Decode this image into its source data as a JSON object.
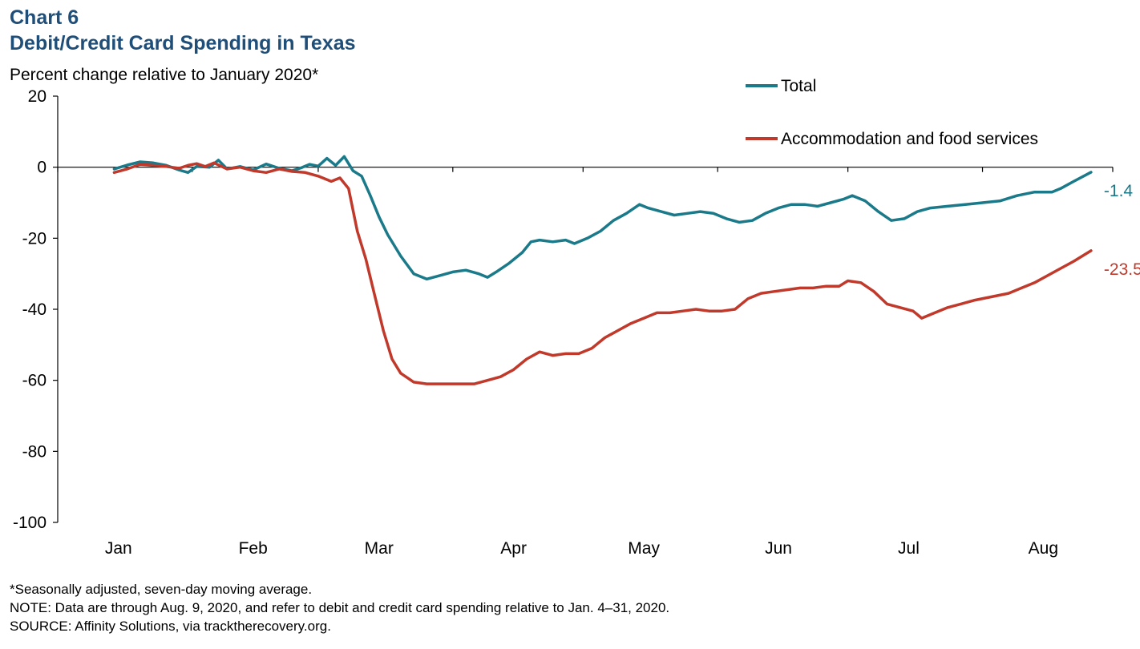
{
  "header": {
    "chart_number": "Chart 6",
    "title": "Debit/Credit Card Spending in Texas",
    "unit_label": "Percent change relative to January 2020*"
  },
  "footnotes": {
    "note1": "*Seasonally adjusted, seven-day moving average.",
    "note2": "NOTE: Data are through Aug. 9, 2020, and refer to debit and credit card spending relative to Jan. 4–31, 2020.",
    "source": "SOURCE: Affinity Solutions, via tracktherecovery.org."
  },
  "chart_data": {
    "type": "line",
    "ylim": [
      -100,
      20
    ],
    "yticks": [
      20,
      0,
      -20,
      -40,
      -60,
      -80,
      -100
    ],
    "xlim": [
      "2020-01-01",
      "2020-08-31"
    ],
    "xticks": [
      {
        "label": "Jan",
        "date": "2020-01-15"
      },
      {
        "label": "Feb",
        "date": "2020-02-15"
      },
      {
        "label": "Mar",
        "date": "2020-03-15"
      },
      {
        "label": "Apr",
        "date": "2020-04-15"
      },
      {
        "label": "May",
        "date": "2020-05-15"
      },
      {
        "label": "Jun",
        "date": "2020-06-15"
      },
      {
        "label": "Jul",
        "date": "2020-07-15"
      },
      {
        "label": "Aug",
        "date": "2020-08-15"
      }
    ],
    "legend_position": "top-right",
    "series": [
      {
        "name": "Total",
        "color": "#1a7a8a",
        "end_label": "-1.4",
        "points": [
          [
            "2020-01-14",
            -0.5
          ],
          [
            "2020-01-17",
            0.6
          ],
          [
            "2020-01-20",
            1.5
          ],
          [
            "2020-01-23",
            1.2
          ],
          [
            "2020-01-26",
            0.5
          ],
          [
            "2020-01-29",
            -0.8
          ],
          [
            "2020-01-31",
            -1.5
          ],
          [
            "2020-02-02",
            0.2
          ],
          [
            "2020-02-05",
            0.0
          ],
          [
            "2020-02-07",
            2.0
          ],
          [
            "2020-02-09",
            -0.5
          ],
          [
            "2020-02-12",
            0.2
          ],
          [
            "2020-02-15",
            -0.8
          ],
          [
            "2020-02-18",
            0.9
          ],
          [
            "2020-02-21",
            -0.3
          ],
          [
            "2020-02-24",
            -1.0
          ],
          [
            "2020-02-26",
            -0.2
          ],
          [
            "2020-02-28",
            0.8
          ],
          [
            "2020-03-01",
            0.3
          ],
          [
            "2020-03-03",
            2.5
          ],
          [
            "2020-03-05",
            0.5
          ],
          [
            "2020-03-07",
            3.0
          ],
          [
            "2020-03-09",
            -1.0
          ],
          [
            "2020-03-11",
            -2.5
          ],
          [
            "2020-03-13",
            -8.0
          ],
          [
            "2020-03-15",
            -14.0
          ],
          [
            "2020-03-17",
            -19.0
          ],
          [
            "2020-03-20",
            -25.0
          ],
          [
            "2020-03-23",
            -30.0
          ],
          [
            "2020-03-26",
            -31.5
          ],
          [
            "2020-03-29",
            -30.5
          ],
          [
            "2020-04-01",
            -29.5
          ],
          [
            "2020-04-04",
            -29.0
          ],
          [
            "2020-04-07",
            -30.0
          ],
          [
            "2020-04-09",
            -31.0
          ],
          [
            "2020-04-11",
            -29.5
          ],
          [
            "2020-04-14",
            -27.0
          ],
          [
            "2020-04-17",
            -24.0
          ],
          [
            "2020-04-19",
            -21.0
          ],
          [
            "2020-04-21",
            -20.5
          ],
          [
            "2020-04-24",
            -21.0
          ],
          [
            "2020-04-27",
            -20.5
          ],
          [
            "2020-04-29",
            -21.5
          ],
          [
            "2020-05-02",
            -20.0
          ],
          [
            "2020-05-05",
            -18.0
          ],
          [
            "2020-05-08",
            -15.0
          ],
          [
            "2020-05-11",
            -13.0
          ],
          [
            "2020-05-14",
            -10.5
          ],
          [
            "2020-05-16",
            -11.5
          ],
          [
            "2020-05-19",
            -12.5
          ],
          [
            "2020-05-22",
            -13.5
          ],
          [
            "2020-05-25",
            -13.0
          ],
          [
            "2020-05-28",
            -12.5
          ],
          [
            "2020-05-31",
            -13.0
          ],
          [
            "2020-06-03",
            -14.5
          ],
          [
            "2020-06-06",
            -15.5
          ],
          [
            "2020-06-09",
            -15.0
          ],
          [
            "2020-06-12",
            -13.0
          ],
          [
            "2020-06-15",
            -11.5
          ],
          [
            "2020-06-18",
            -10.5
          ],
          [
            "2020-06-21",
            -10.5
          ],
          [
            "2020-06-24",
            -11.0
          ],
          [
            "2020-06-27",
            -10.0
          ],
          [
            "2020-06-30",
            -9.0
          ],
          [
            "2020-07-02",
            -8.0
          ],
          [
            "2020-07-05",
            -9.5
          ],
          [
            "2020-07-08",
            -12.5
          ],
          [
            "2020-07-11",
            -15.0
          ],
          [
            "2020-07-14",
            -14.5
          ],
          [
            "2020-07-17",
            -12.5
          ],
          [
            "2020-07-20",
            -11.5
          ],
          [
            "2020-07-24",
            -11.0
          ],
          [
            "2020-07-28",
            -10.5
          ],
          [
            "2020-08-01",
            -10.0
          ],
          [
            "2020-08-05",
            -9.5
          ],
          [
            "2020-08-09",
            -8.0
          ],
          [
            "2020-08-13",
            -7.0
          ],
          [
            "2020-08-17",
            -7.0
          ],
          [
            "2020-08-19",
            -6.0
          ],
          [
            "2020-08-22",
            -4.0
          ],
          [
            "2020-08-26",
            -1.4
          ]
        ]
      },
      {
        "name": "Accommodation and food services",
        "color": "#c0392b",
        "end_label": "-23.5",
        "points": [
          [
            "2020-01-14",
            -1.5
          ],
          [
            "2020-01-17",
            -0.5
          ],
          [
            "2020-01-20",
            0.8
          ],
          [
            "2020-01-23",
            0.5
          ],
          [
            "2020-01-26",
            0.2
          ],
          [
            "2020-01-29",
            -0.3
          ],
          [
            "2020-01-31",
            0.5
          ],
          [
            "2020-02-02",
            1.0
          ],
          [
            "2020-02-04",
            0.2
          ],
          [
            "2020-02-06",
            1.2
          ],
          [
            "2020-02-09",
            -0.5
          ],
          [
            "2020-02-12",
            0.0
          ],
          [
            "2020-02-15",
            -1.0
          ],
          [
            "2020-02-18",
            -1.5
          ],
          [
            "2020-02-21",
            -0.5
          ],
          [
            "2020-02-24",
            -1.2
          ],
          [
            "2020-02-27",
            -1.5
          ],
          [
            "2020-03-01",
            -2.5
          ],
          [
            "2020-03-04",
            -4.0
          ],
          [
            "2020-03-06",
            -3.0
          ],
          [
            "2020-03-08",
            -6.0
          ],
          [
            "2020-03-10",
            -18.0
          ],
          [
            "2020-03-12",
            -26.0
          ],
          [
            "2020-03-14",
            -36.0
          ],
          [
            "2020-03-16",
            -46.0
          ],
          [
            "2020-03-18",
            -54.0
          ],
          [
            "2020-03-20",
            -58.0
          ],
          [
            "2020-03-23",
            -60.5
          ],
          [
            "2020-03-26",
            -61.0
          ],
          [
            "2020-03-30",
            -61.0
          ],
          [
            "2020-04-03",
            -61.0
          ],
          [
            "2020-04-06",
            -61.0
          ],
          [
            "2020-04-09",
            -60.0
          ],
          [
            "2020-04-12",
            -59.0
          ],
          [
            "2020-04-15",
            -57.0
          ],
          [
            "2020-04-18",
            -54.0
          ],
          [
            "2020-04-21",
            -52.0
          ],
          [
            "2020-04-24",
            -53.0
          ],
          [
            "2020-04-27",
            -52.5
          ],
          [
            "2020-04-30",
            -52.5
          ],
          [
            "2020-05-03",
            -51.0
          ],
          [
            "2020-05-06",
            -48.0
          ],
          [
            "2020-05-09",
            -46.0
          ],
          [
            "2020-05-12",
            -44.0
          ],
          [
            "2020-05-15",
            -42.5
          ],
          [
            "2020-05-18",
            -41.0
          ],
          [
            "2020-05-21",
            -41.0
          ],
          [
            "2020-05-24",
            -40.5
          ],
          [
            "2020-05-27",
            -40.0
          ],
          [
            "2020-05-30",
            -40.5
          ],
          [
            "2020-06-02",
            -40.5
          ],
          [
            "2020-06-05",
            -40.0
          ],
          [
            "2020-06-08",
            -37.0
          ],
          [
            "2020-06-11",
            -35.5
          ],
          [
            "2020-06-14",
            -35.0
          ],
          [
            "2020-06-17",
            -34.5
          ],
          [
            "2020-06-20",
            -34.0
          ],
          [
            "2020-06-23",
            -34.0
          ],
          [
            "2020-06-26",
            -33.5
          ],
          [
            "2020-06-29",
            -33.5
          ],
          [
            "2020-07-01",
            -32.0
          ],
          [
            "2020-07-04",
            -32.5
          ],
          [
            "2020-07-07",
            -35.0
          ],
          [
            "2020-07-10",
            -38.5
          ],
          [
            "2020-07-13",
            -39.5
          ],
          [
            "2020-07-16",
            -40.5
          ],
          [
            "2020-07-18",
            -42.5
          ],
          [
            "2020-07-21",
            -41.0
          ],
          [
            "2020-07-24",
            -39.5
          ],
          [
            "2020-07-27",
            -38.5
          ],
          [
            "2020-07-30",
            -37.5
          ],
          [
            "2020-08-03",
            -36.5
          ],
          [
            "2020-08-07",
            -35.5
          ],
          [
            "2020-08-10",
            -34.0
          ],
          [
            "2020-08-13",
            -32.5
          ],
          [
            "2020-08-16",
            -30.5
          ],
          [
            "2020-08-19",
            -28.5
          ],
          [
            "2020-08-22",
            -26.5
          ],
          [
            "2020-08-26",
            -23.5
          ]
        ]
      }
    ]
  }
}
